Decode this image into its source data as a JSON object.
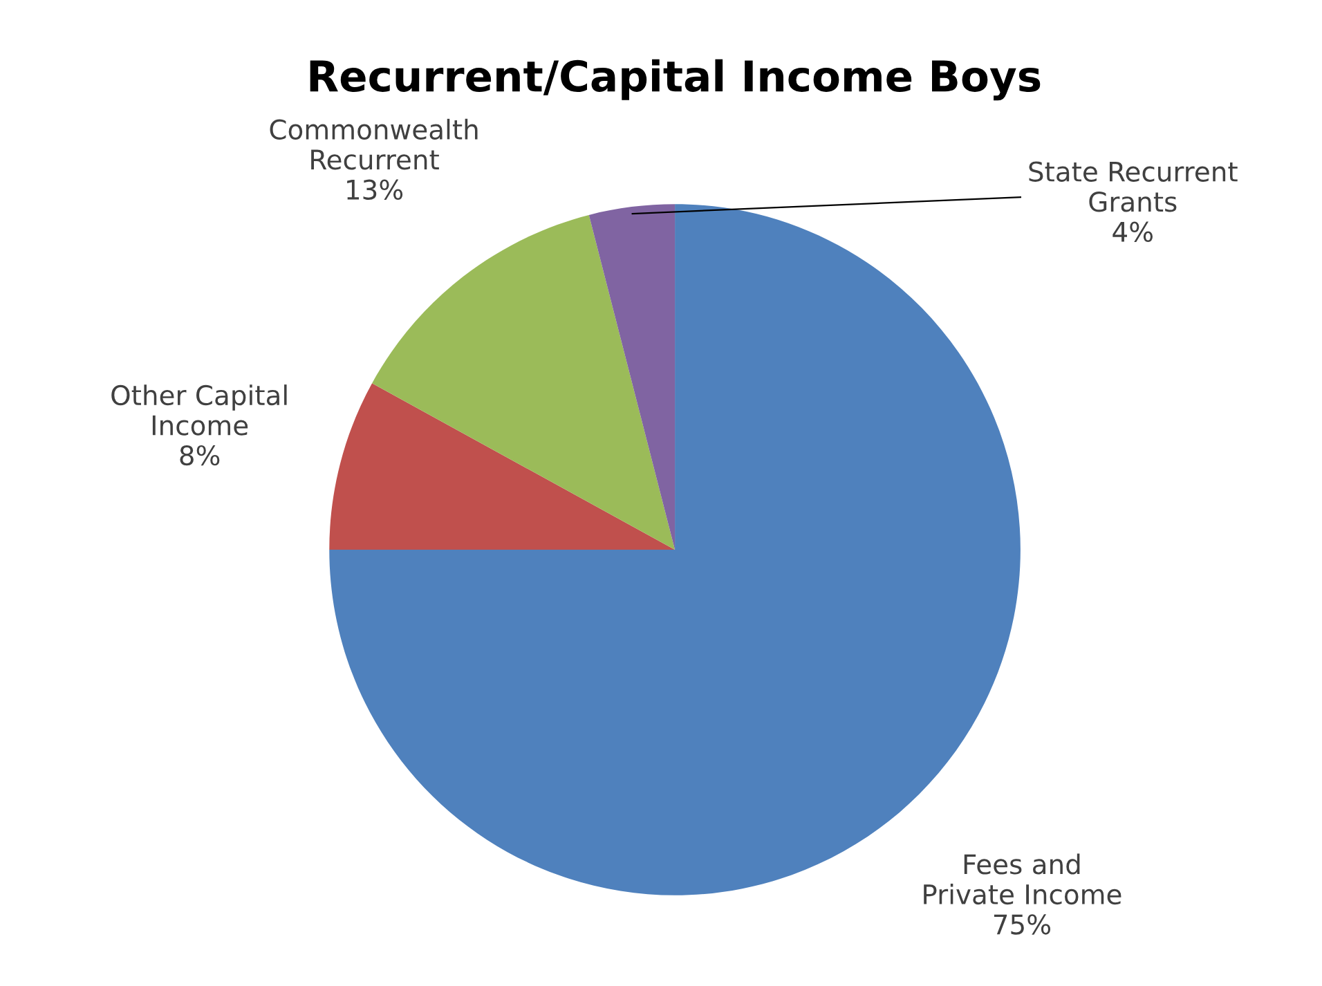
{
  "chart_data": {
    "type": "pie",
    "title": "Recurrent/Capital Income Boys",
    "categories": [
      "Fees and\nPrivate Income",
      "Other Capital\nIncome",
      "Commonwealth\nRecurrent",
      "State Recurrent\nGrants"
    ],
    "values": [
      75,
      8,
      13,
      4
    ],
    "colors": [
      "#4f81bd",
      "#c0504d",
      "#9bbb59",
      "#8064a2"
    ],
    "value_labels": [
      "75%",
      "8%",
      "13%",
      "4%"
    ]
  }
}
